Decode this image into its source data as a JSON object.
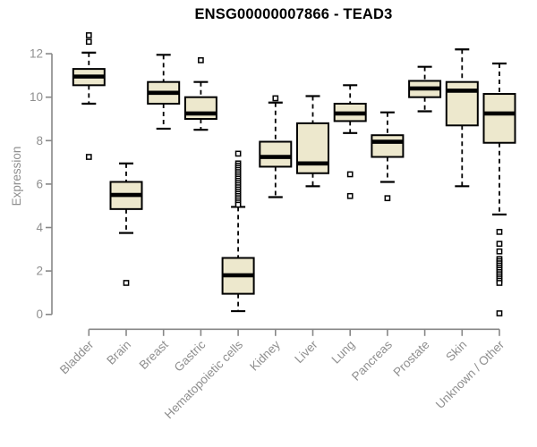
{
  "page": {
    "background": "#ffffff"
  },
  "chart_data": {
    "type": "boxplot",
    "title": "ENSG00000007866 - TEAD3",
    "ylabel": "Expression",
    "ylim": [
      0,
      12
    ],
    "yticks": [
      0,
      2,
      4,
      6,
      8,
      10,
      12
    ],
    "grid": false,
    "legend_position": "none",
    "colors": {
      "box_fill": "#EDE8CD",
      "box_border": "#000000",
      "median": "#000000",
      "whisker": "#000000",
      "outlier_fill": "#ffffff",
      "axis": "#878787",
      "tick_label": "#8f8f8f",
      "title": "#000000"
    },
    "categories": [
      "Bladder",
      "Brain",
      "Breast",
      "Gastric",
      "Hematopoietic cells",
      "Kidney",
      "Liver",
      "Lung",
      "Pancreas",
      "Prostate",
      "Skin",
      "Unknown / Other"
    ],
    "series": [
      {
        "category": "Bladder",
        "whisker_low": 9.7,
        "q1": 10.55,
        "median": 10.95,
        "q3": 11.3,
        "whisker_high": 12.05,
        "outliers": [
          12.85,
          12.55,
          7.25
        ]
      },
      {
        "category": "Brain",
        "whisker_low": 3.75,
        "q1": 4.85,
        "median": 5.5,
        "q3": 6.1,
        "whisker_high": 6.95,
        "outliers": [
          1.45
        ]
      },
      {
        "category": "Breast",
        "whisker_low": 8.55,
        "q1": 9.7,
        "median": 10.2,
        "q3": 10.7,
        "whisker_high": 11.95,
        "outliers": []
      },
      {
        "category": "Gastric",
        "whisker_low": 8.5,
        "q1": 9.0,
        "median": 9.25,
        "q3": 10.0,
        "whisker_high": 10.7,
        "outliers": [
          11.7
        ]
      },
      {
        "category": "Hematopoietic cells",
        "whisker_low": 0.15,
        "q1": 0.95,
        "median": 1.8,
        "q3": 2.6,
        "whisker_high": 4.95,
        "outliers": [
          7.4,
          6.95,
          6.85,
          6.75,
          6.65,
          6.55,
          6.45,
          6.35,
          6.25,
          6.15,
          6.05,
          5.95,
          5.85,
          5.75,
          5.65,
          5.55,
          5.45,
          5.35,
          5.25,
          5.15,
          5.05
        ]
      },
      {
        "category": "Kidney",
        "whisker_low": 5.4,
        "q1": 6.8,
        "median": 7.25,
        "q3": 7.95,
        "whisker_high": 9.75,
        "outliers": [
          9.95
        ]
      },
      {
        "category": "Liver",
        "whisker_low": 5.9,
        "q1": 6.5,
        "median": 6.95,
        "q3": 8.8,
        "whisker_high": 10.05,
        "outliers": []
      },
      {
        "category": "Lung",
        "whisker_low": 8.35,
        "q1": 8.9,
        "median": 9.25,
        "q3": 9.7,
        "whisker_high": 10.55,
        "outliers": [
          6.45,
          5.45
        ]
      },
      {
        "category": "Pancreas",
        "whisker_low": 6.1,
        "q1": 7.25,
        "median": 7.95,
        "q3": 8.25,
        "whisker_high": 9.3,
        "outliers": [
          5.35
        ]
      },
      {
        "category": "Prostate",
        "whisker_low": 9.35,
        "q1": 10.0,
        "median": 10.4,
        "q3": 10.75,
        "whisker_high": 11.4,
        "outliers": []
      },
      {
        "category": "Skin",
        "whisker_low": 5.9,
        "q1": 8.7,
        "median": 10.3,
        "q3": 10.7,
        "whisker_high": 12.2,
        "outliers": []
      },
      {
        "category": "Unknown / Other",
        "whisker_low": 4.6,
        "q1": 7.9,
        "median": 9.25,
        "q3": 10.15,
        "whisker_high": 11.55,
        "outliers": [
          3.8,
          3.25,
          2.9,
          2.55,
          2.45,
          2.35,
          2.25,
          2.15,
          2.05,
          1.95,
          1.85,
          1.75,
          1.65,
          1.55,
          1.45,
          0.05
        ]
      }
    ]
  }
}
